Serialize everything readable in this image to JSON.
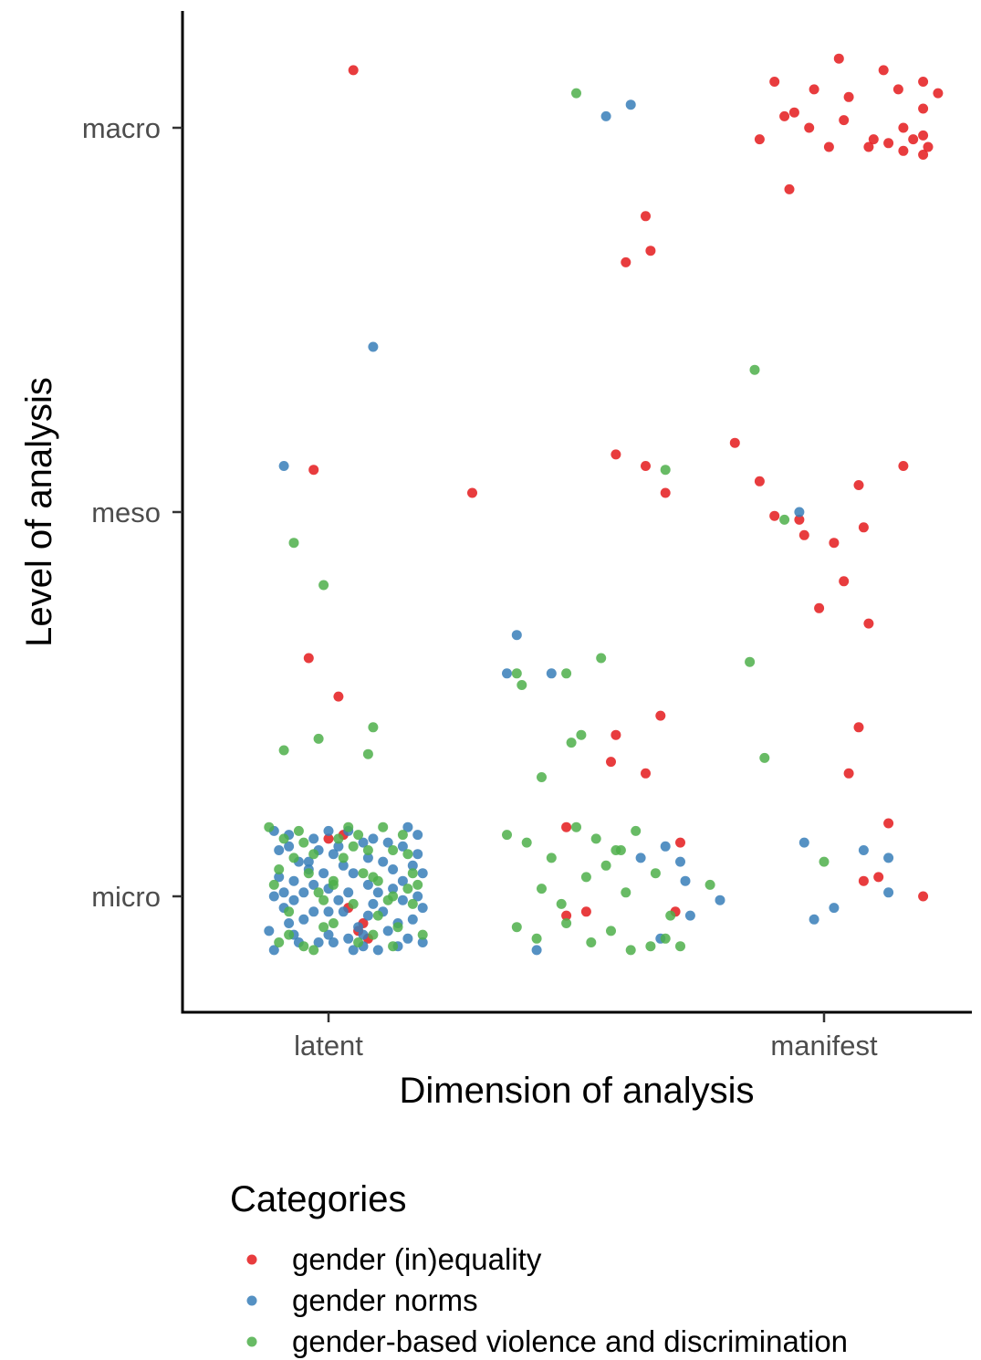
{
  "chart_data": {
    "type": "scatter",
    "jitter": true,
    "xlabel": "Dimension of analysis",
    "ylabel": "Level of analysis",
    "x_ticks": [
      "latent",
      "manifest"
    ],
    "y_ticks": [
      "micro",
      "meso",
      "macro"
    ],
    "x_range": [
      0.7,
      2.3
    ],
    "y_range": [
      0.72,
      3.3
    ],
    "grid": false,
    "legend": {
      "title": "Categories",
      "placement": "bottom"
    },
    "series": [
      {
        "name": "gender (in)equality",
        "color": "#e41a1c",
        "points": [
          [
            1.05,
            3.15
          ],
          [
            1.6,
            2.65
          ],
          [
            1.64,
            2.77
          ],
          [
            1.65,
            2.68
          ],
          [
            1.29,
            2.05
          ],
          [
            1.9,
            3.12
          ],
          [
            1.94,
            3.04
          ],
          [
            1.98,
            3.1
          ],
          [
            2.03,
            3.18
          ],
          [
            2.05,
            3.08
          ],
          [
            2.12,
            3.15
          ],
          [
            2.15,
            3.1
          ],
          [
            2.2,
            3.12
          ],
          [
            2.23,
            3.09
          ],
          [
            1.87,
            2.97
          ],
          [
            1.92,
            3.03
          ],
          [
            1.97,
            3.0
          ],
          [
            2.01,
            2.95
          ],
          [
            2.04,
            3.02
          ],
          [
            2.09,
            2.95
          ],
          [
            2.1,
            2.97
          ],
          [
            2.13,
            2.96
          ],
          [
            2.16,
            3.0
          ],
          [
            2.2,
            2.98
          ],
          [
            2.16,
            2.94
          ],
          [
            2.18,
            2.97
          ],
          [
            2.2,
            3.05
          ],
          [
            2.2,
            2.93
          ],
          [
            2.21,
            2.95
          ],
          [
            1.93,
            2.84
          ],
          [
            0.97,
            2.11
          ],
          [
            1.58,
            2.15
          ],
          [
            1.64,
            2.12
          ],
          [
            1.68,
            2.05
          ],
          [
            1.82,
            2.18
          ],
          [
            2.16,
            2.12
          ],
          [
            2.07,
            2.07
          ],
          [
            1.87,
            2.08
          ],
          [
            1.9,
            1.99
          ],
          [
            1.95,
            1.98
          ],
          [
            1.96,
            1.94
          ],
          [
            2.02,
            1.92
          ],
          [
            2.08,
            1.96
          ],
          [
            2.04,
            1.82
          ],
          [
            0.96,
            1.62
          ],
          [
            1.02,
            1.52
          ],
          [
            1.67,
            1.47
          ],
          [
            1.57,
            1.35
          ],
          [
            2.07,
            1.44
          ],
          [
            1.99,
            1.75
          ],
          [
            2.09,
            1.71
          ],
          [
            2.05,
            1.32
          ],
          [
            2.13,
            1.19
          ],
          [
            2.08,
            1.04
          ],
          [
            1.64,
            1.32
          ],
          [
            1.58,
            1.42
          ],
          [
            1.48,
            1.18
          ],
          [
            1.71,
            1.14
          ],
          [
            1.7,
            0.96
          ],
          [
            1.48,
            0.95
          ],
          [
            1.52,
            0.96
          ],
          [
            1.0,
            1.15
          ],
          [
            1.04,
            0.97
          ],
          [
            1.06,
            0.91
          ],
          [
            1.08,
            0.89
          ],
          [
            1.07,
            0.93
          ],
          [
            1.03,
            1.16
          ],
          [
            2.11,
            1.05
          ],
          [
            2.2,
            1.0
          ]
        ]
      },
      {
        "name": "gender norms",
        "color": "#377eb8",
        "points": [
          [
            1.09,
            2.43
          ],
          [
            0.91,
            2.12
          ],
          [
            1.56,
            3.03
          ],
          [
            1.61,
            3.06
          ],
          [
            1.38,
            1.68
          ],
          [
            1.36,
            1.58
          ],
          [
            1.45,
            1.58
          ],
          [
            1.95,
            2.0
          ],
          [
            1.96,
            1.14
          ],
          [
            1.98,
            0.94
          ],
          [
            2.02,
            0.97
          ],
          [
            2.08,
            1.12
          ],
          [
            2.13,
            1.1
          ],
          [
            2.13,
            1.01
          ],
          [
            1.42,
            0.86
          ],
          [
            1.79,
            0.99
          ],
          [
            1.67,
            0.89
          ],
          [
            1.63,
            1.1
          ],
          [
            1.68,
            1.13
          ],
          [
            1.71,
            1.09
          ],
          [
            1.72,
            1.04
          ],
          [
            1.73,
            0.95
          ],
          [
            0.89,
            1.17
          ],
          [
            0.92,
            1.13
          ],
          [
            0.96,
            1.07
          ],
          [
            1.0,
            1.02
          ],
          [
            1.03,
            0.96
          ],
          [
            1.07,
            0.9
          ],
          [
            1.1,
            0.86
          ],
          [
            1.14,
            0.93
          ],
          [
            1.18,
            1.0
          ],
          [
            0.9,
            1.05
          ],
          [
            0.93,
            0.99
          ],
          [
            0.95,
            0.94
          ],
          [
            0.98,
            0.88
          ],
          [
            1.01,
            1.11
          ],
          [
            1.05,
            1.06
          ],
          [
            1.08,
            1.1
          ],
          [
            1.12,
            1.14
          ],
          [
            1.16,
            1.18
          ],
          [
            1.19,
            1.06
          ],
          [
            0.88,
            0.91
          ],
          [
            0.91,
            0.97
          ],
          [
            0.94,
            1.09
          ],
          [
            0.97,
            1.15
          ],
          [
            1.0,
            0.9
          ],
          [
            1.04,
            1.01
          ],
          [
            1.07,
            0.87
          ],
          [
            1.11,
            0.96
          ],
          [
            1.15,
            1.04
          ],
          [
            1.18,
            1.11
          ],
          [
            0.89,
            0.86
          ],
          [
            0.92,
            0.93
          ],
          [
            0.95,
            1.01
          ],
          [
            0.99,
            1.06
          ],
          [
            1.02,
            1.13
          ],
          [
            1.06,
            0.92
          ],
          [
            1.09,
            0.98
          ],
          [
            1.13,
            1.07
          ],
          [
            1.17,
            0.94
          ],
          [
            1.19,
            0.88
          ],
          [
            0.9,
            1.12
          ],
          [
            0.93,
            1.04
          ],
          [
            0.97,
            0.96
          ],
          [
            1.01,
            0.88
          ],
          [
            1.04,
            1.17
          ],
          [
            1.08,
            1.03
          ],
          [
            1.12,
            0.91
          ],
          [
            1.15,
            0.99
          ],
          [
            1.18,
            1.16
          ],
          [
            0.91,
            1.01
          ],
          [
            0.94,
            0.88
          ],
          [
            0.98,
            1.12
          ],
          [
            1.02,
            0.99
          ],
          [
            1.05,
            0.86
          ],
          [
            1.09,
            1.15
          ],
          [
            1.13,
            1.02
          ],
          [
            1.16,
            0.89
          ],
          [
            1.19,
            0.97
          ],
          [
            0.92,
            1.16
          ],
          [
            0.96,
            1.09
          ],
          [
            1.0,
            1.17
          ],
          [
            1.03,
            1.08
          ],
          [
            1.07,
            1.14
          ],
          [
            1.1,
            1.01
          ],
          [
            1.14,
            0.87
          ],
          [
            1.17,
            1.08
          ],
          [
            0.89,
            1.0
          ],
          [
            0.93,
            0.9
          ],
          [
            0.97,
            1.03
          ],
          [
            1.0,
            0.96
          ],
          [
            1.04,
            0.89
          ],
          [
            1.08,
            0.95
          ],
          [
            1.11,
            1.09
          ],
          [
            1.15,
            1.13
          ]
        ]
      },
      {
        "name": "gender-based violence and discrimination",
        "color": "#4daf4a",
        "points": [
          [
            1.5,
            3.09
          ],
          [
            1.86,
            2.37
          ],
          [
            1.68,
            2.11
          ],
          [
            1.92,
            1.98
          ],
          [
            0.93,
            1.92
          ],
          [
            0.99,
            1.81
          ],
          [
            0.91,
            1.38
          ],
          [
            0.98,
            1.41
          ],
          [
            1.09,
            1.44
          ],
          [
            1.08,
            1.37
          ],
          [
            1.85,
            1.61
          ],
          [
            1.88,
            1.36
          ],
          [
            1.77,
            1.03
          ],
          [
            2.0,
            1.09
          ],
          [
            1.39,
            1.55
          ],
          [
            1.38,
            1.58
          ],
          [
            1.48,
            1.58
          ],
          [
            1.43,
            1.31
          ],
          [
            1.51,
            1.42
          ],
          [
            1.55,
            1.62
          ],
          [
            1.49,
            1.4
          ],
          [
            1.36,
            1.16
          ],
          [
            1.4,
            1.14
          ],
          [
            1.45,
            1.1
          ],
          [
            1.5,
            1.18
          ],
          [
            1.54,
            1.15
          ],
          [
            1.58,
            1.12
          ],
          [
            1.62,
            1.17
          ],
          [
            1.43,
            1.02
          ],
          [
            1.47,
            0.98
          ],
          [
            1.52,
            1.05
          ],
          [
            1.56,
            1.08
          ],
          [
            1.6,
            1.01
          ],
          [
            1.38,
            0.92
          ],
          [
            1.42,
            0.89
          ],
          [
            1.48,
            0.93
          ],
          [
            1.53,
            0.88
          ],
          [
            1.57,
            0.91
          ],
          [
            1.61,
            0.86
          ],
          [
            1.65,
            0.87
          ],
          [
            1.68,
            0.89
          ],
          [
            1.71,
            0.87
          ],
          [
            1.69,
            0.95
          ],
          [
            1.66,
            1.06
          ],
          [
            1.59,
            1.12
          ],
          [
            0.88,
            1.18
          ],
          [
            0.9,
            1.07
          ],
          [
            0.92,
            0.96
          ],
          [
            0.95,
            1.14
          ],
          [
            0.98,
            1.01
          ],
          [
            1.01,
            0.93
          ],
          [
            1.04,
            1.18
          ],
          [
            1.07,
            1.06
          ],
          [
            1.1,
            0.95
          ],
          [
            1.13,
            1.12
          ],
          [
            1.16,
            1.02
          ],
          [
            1.19,
            0.9
          ],
          [
            0.89,
            1.03
          ],
          [
            0.92,
            0.9
          ],
          [
            0.96,
            1.06
          ],
          [
            0.99,
            0.99
          ],
          [
            1.02,
            1.15
          ],
          [
            1.06,
            0.88
          ],
          [
            1.09,
            1.05
          ],
          [
            1.12,
            0.99
          ],
          [
            1.15,
            1.16
          ],
          [
            1.18,
            1.03
          ],
          [
            0.9,
            0.88
          ],
          [
            0.94,
            1.17
          ],
          [
            0.97,
            1.11
          ],
          [
            1.01,
            1.04
          ],
          [
            1.05,
            0.98
          ],
          [
            1.08,
            1.12
          ],
          [
            1.11,
            1.18
          ],
          [
            1.14,
            0.92
          ],
          [
            1.17,
            1.06
          ],
          [
            0.91,
            1.15
          ],
          [
            0.95,
            0.87
          ],
          [
            0.99,
            0.92
          ],
          [
            1.03,
            1.1
          ],
          [
            1.06,
            1.16
          ],
          [
            1.1,
            1.04
          ],
          [
            1.13,
            0.87
          ],
          [
            1.17,
            0.98
          ],
          [
            0.93,
            1.1
          ],
          [
            0.97,
            0.86
          ],
          [
            1.01,
            1.03
          ],
          [
            1.05,
            1.13
          ],
          [
            1.09,
            0.9
          ],
          [
            1.13,
            1.0
          ],
          [
            1.16,
            1.11
          ]
        ]
      }
    ]
  }
}
